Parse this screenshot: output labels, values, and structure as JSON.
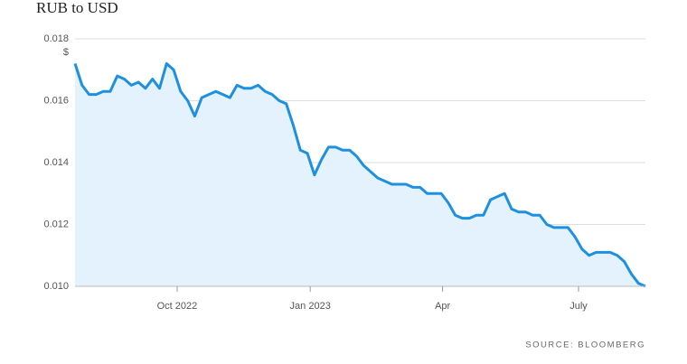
{
  "chart_data": {
    "type": "area",
    "title": "RUB to USD",
    "y_unit": "$",
    "source": "SOURCE: BLOOMBERG",
    "values": [
      0.0172,
      0.0165,
      0.0162,
      0.0162,
      0.0163,
      0.0163,
      0.0168,
      0.0167,
      0.0165,
      0.0166,
      0.0164,
      0.0167,
      0.0164,
      0.0172,
      0.017,
      0.0163,
      0.016,
      0.0155,
      0.0161,
      0.0162,
      0.0163,
      0.0162,
      0.0161,
      0.0165,
      0.0164,
      0.0164,
      0.0165,
      0.0163,
      0.0162,
      0.016,
      0.0159,
      0.0152,
      0.0144,
      0.0143,
      0.0136,
      0.0141,
      0.0145,
      0.0145,
      0.0144,
      0.0144,
      0.0142,
      0.0139,
      0.0137,
      0.0135,
      0.0134,
      0.0133,
      0.0133,
      0.0133,
      0.0132,
      0.0132,
      0.013,
      0.013,
      0.013,
      0.0127,
      0.0123,
      0.0122,
      0.0122,
      0.0123,
      0.0123,
      0.0128,
      0.0129,
      0.013,
      0.0125,
      0.0124,
      0.0124,
      0.0123,
      0.0123,
      0.012,
      0.0119,
      0.0119,
      0.0119,
      0.0116,
      0.0112,
      0.011,
      0.0111,
      0.0111,
      0.0111,
      0.011,
      0.0108,
      0.0104,
      0.0101,
      0.01
    ],
    "color": "#1e90e0",
    "fill_color": "#e3f2fc",
    "xlim": [
      0,
      81
    ],
    "xticks": [
      {
        "value": 14.5,
        "label": "Oct 2022"
      },
      {
        "value": 33.4,
        "label": "Jan 2023"
      },
      {
        "value": 52.2,
        "label": "Apr"
      },
      {
        "value": 71.5,
        "label": "July"
      }
    ],
    "ylim": [
      0.01,
      0.018
    ],
    "yticks": [
      {
        "value": 0.01,
        "label": "0.010"
      },
      {
        "value": 0.012,
        "label": "0.012"
      },
      {
        "value": 0.014,
        "label": "0.014"
      },
      {
        "value": 0.016,
        "label": "0.016"
      },
      {
        "value": 0.018,
        "label": "0.018"
      }
    ],
    "grid": true
  }
}
